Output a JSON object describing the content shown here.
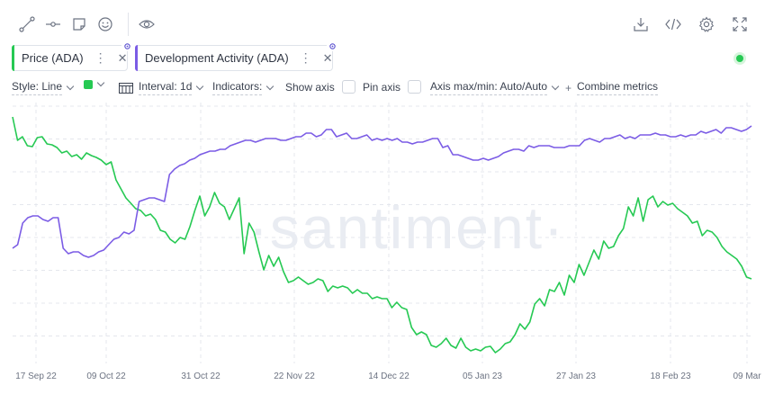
{
  "toolbar": {
    "left_icons": [
      "line-drawing-icon",
      "horizontal-line-icon",
      "note-icon",
      "emoji-icon",
      "eye-icon"
    ],
    "right_icons": [
      "download-icon",
      "embed-code-icon",
      "settings-gear-icon",
      "fullscreen-icon"
    ]
  },
  "metrics": [
    {
      "label": "Price (ADA)",
      "color": "#26c953"
    },
    {
      "label": "Development Activity (ADA)",
      "color": "#7b5ce5"
    }
  ],
  "settings": {
    "style": "Style: Line",
    "interval": "Interval: 1d",
    "indicators": "Indicators:",
    "show_axis": "Show axis",
    "pin_axis": "Pin axis",
    "axis_maxmin": "Axis max/min: Auto/Auto",
    "combine": "Combine metrics"
  },
  "watermark": "·santiment·",
  "chart_data": {
    "type": "line",
    "x_tick_labels": [
      "17 Sep 22",
      "09 Oct 22",
      "31 Oct 22",
      "22 Nov 22",
      "14 Dec 22",
      "05 Jan 23",
      "27 Jan 23",
      "18 Feb 23",
      "09 Mar"
    ],
    "grid": true,
    "series": [
      {
        "name": "Price (ADA)",
        "color": "#26c953",
        "values": [
          84,
          58,
          62,
          52,
          51,
          61,
          62,
          54,
          53,
          50,
          44,
          46,
          40,
          42,
          37,
          44,
          41,
          39,
          36,
          31,
          34,
          14,
          4,
          -6,
          -12,
          -18,
          -20,
          -26,
          -24,
          -30,
          -42,
          -44,
          -52,
          -56,
          -50,
          -52,
          -38,
          -20,
          -4,
          -26,
          -16,
          0,
          -12,
          -16,
          -30,
          -18,
          -6,
          -68,
          -34,
          -44,
          -66,
          -86,
          -70,
          -82,
          -72,
          -88,
          -100,
          -98,
          -94,
          -98,
          -102,
          -100,
          -96,
          -98,
          -110,
          -104,
          -106,
          -104,
          -106,
          -112,
          -108,
          -112,
          -112,
          -118,
          -116,
          -118,
          -118,
          -128,
          -122,
          -128,
          -130,
          -150,
          -158,
          -155,
          -158,
          -170,
          -172,
          -168,
          -162,
          -170,
          -173,
          -162,
          -172,
          -176,
          -174,
          -176,
          -172,
          -171,
          -178,
          -174,
          -168,
          -166,
          -158,
          -146,
          -152,
          -144,
          -124,
          -118,
          -126,
          -108,
          -110,
          -100,
          -114,
          -92,
          -100,
          -80,
          -92,
          -78,
          -64,
          -74,
          -54,
          -62,
          -60,
          -48,
          -40,
          -16,
          -26,
          -6,
          -32,
          -8,
          -4,
          -16,
          -10,
          -14,
          -12,
          -18,
          -22,
          -26,
          -34,
          -32,
          -48,
          -42,
          -44,
          -50,
          -60,
          -66,
          -70,
          -74,
          -82,
          -94,
          -96
        ]
      },
      {
        "name": "Development Activity (ADA)",
        "color": "#7b5ce5",
        "values": [
          -62,
          -58,
          -34,
          -28,
          -26,
          -26,
          -30,
          -32,
          -28,
          -28,
          -62,
          -68,
          -66,
          -66,
          -70,
          -72,
          -70,
          -66,
          -64,
          -58,
          -52,
          -50,
          -44,
          -46,
          -42,
          -10,
          -8,
          -6,
          -6,
          -8,
          -10,
          20,
          26,
          30,
          32,
          36,
          38,
          42,
          44,
          46,
          46,
          48,
          48,
          52,
          54,
          56,
          58,
          58,
          56,
          58,
          60,
          60,
          60,
          58,
          58,
          60,
          62,
          62,
          66,
          66,
          62,
          64,
          70,
          70,
          62,
          64,
          66,
          60,
          60,
          62,
          64,
          58,
          60,
          58,
          60,
          58,
          60,
          56,
          56,
          54,
          56,
          56,
          58,
          60,
          60,
          50,
          52,
          42,
          42,
          40,
          38,
          36,
          36,
          38,
          36,
          38,
          40,
          44,
          46,
          48,
          48,
          46,
          52,
          50,
          52,
          52,
          52,
          50,
          50,
          50,
          52,
          52,
          52,
          58,
          60,
          58,
          56,
          60,
          60,
          62,
          64,
          60,
          62,
          60,
          64,
          64,
          64,
          66,
          64,
          64,
          62,
          62,
          64,
          62,
          64,
          64,
          68,
          66,
          68,
          70,
          66,
          72,
          72,
          70,
          68,
          70,
          74
        ]
      }
    ]
  }
}
